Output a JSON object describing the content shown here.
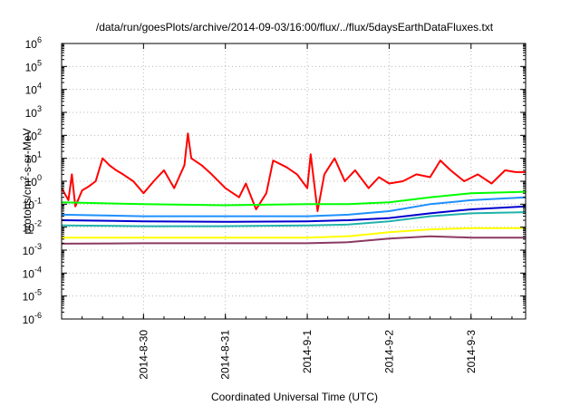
{
  "chart_data": {
    "type": "line",
    "title": "/data/run/goesPlots/archive/2014-09-03/16:00/flux/../flux/5daysEarthDataFluxes.txt",
    "xlabel": "Coordinated Universal Time (UTC)",
    "ylabel": "protons/cm²-s-sr-MeV",
    "yscale": "log",
    "ylim": [
      1e-06,
      1000000.0
    ],
    "xlim": [
      "2014-08-29 00:00",
      "2014-09-03 16:00"
    ],
    "x_tick_labels": [
      "2014-8-30",
      "2014-8-31",
      "2014-9-1",
      "2014-9-2",
      "2014-9-3"
    ],
    "y_tick_labels": [
      {
        "base": "10",
        "exp": "-6"
      },
      {
        "base": "10",
        "exp": "-5"
      },
      {
        "base": "10",
        "exp": "-4"
      },
      {
        "base": "10",
        "exp": "-3"
      },
      {
        "base": "10",
        "exp": "-2"
      },
      {
        "base": "10",
        "exp": "-1"
      },
      {
        "base": "10",
        "exp": "0"
      },
      {
        "base": "10",
        "exp": "1"
      },
      {
        "base": "10",
        "exp": "2"
      },
      {
        "base": "10",
        "exp": "3"
      },
      {
        "base": "10",
        "exp": "4"
      },
      {
        "base": "10",
        "exp": "5"
      },
      {
        "base": "10",
        "exp": "6"
      }
    ],
    "grid": true,
    "legend": "none",
    "series": [
      {
        "color": "#ff0000",
        "x": [
          "2014-08-29 00:00",
          "2014-08-29 02:00",
          "2014-08-29 03:00",
          "2014-08-29 04:00",
          "2014-08-29 06:00",
          "2014-08-29 08:00",
          "2014-08-29 10:00",
          "2014-08-29 12:00",
          "2014-08-29 14:00",
          "2014-08-29 16:00",
          "2014-08-29 18:00",
          "2014-08-29 21:00",
          "2014-08-30 00:00",
          "2014-08-30 03:00",
          "2014-08-30 06:00",
          "2014-08-30 09:00",
          "2014-08-30 12:00",
          "2014-08-30 13:00",
          "2014-08-30 14:00",
          "2014-08-30 17:00",
          "2014-08-30 20:00",
          "2014-08-31 00:00",
          "2014-08-31 04:00",
          "2014-08-31 06:00",
          "2014-08-31 09:00",
          "2014-08-31 12:00",
          "2014-08-31 14:00",
          "2014-08-31 18:00",
          "2014-08-31 21:00",
          "2014-09-01 00:00",
          "2014-09-01 01:00",
          "2014-09-01 03:00",
          "2014-09-01 05:00",
          "2014-09-01 08:00",
          "2014-09-01 11:00",
          "2014-09-01 14:00",
          "2014-09-01 18:00",
          "2014-09-01 21:00",
          "2014-09-02 00:00",
          "2014-09-02 04:00",
          "2014-09-02 08:00",
          "2014-09-02 12:00",
          "2014-09-02 15:00",
          "2014-09-02 18:00",
          "2014-09-02 22:00",
          "2014-09-03 02:00",
          "2014-09-03 06:00",
          "2014-09-03 10:00",
          "2014-09-03 13:00",
          "2014-09-03 16:00"
        ],
        "y": [
          0.5,
          0.15,
          2,
          0.08,
          0.4,
          0.6,
          1,
          10,
          5,
          3,
          2,
          1,
          0.3,
          1,
          3,
          0.5,
          5,
          120,
          10,
          5,
          2,
          0.5,
          0.2,
          0.8,
          0.06,
          0.3,
          8,
          4,
          2,
          0.5,
          15,
          0.05,
          2,
          10,
          1,
          3,
          0.5,
          1.5,
          0.8,
          1,
          2,
          1.5,
          8,
          3,
          1,
          2,
          0.8,
          3,
          2.5,
          2.5
        ]
      },
      {
        "color": "#00ff00",
        "x": [
          "2014-08-29 00:00",
          "2014-08-30 00:00",
          "2014-08-31 00:00",
          "2014-09-01 00:00",
          "2014-09-01 12:00",
          "2014-09-02 00:00",
          "2014-09-02 12:00",
          "2014-09-03 00:00",
          "2014-09-03 16:00"
        ],
        "y": [
          0.12,
          0.1,
          0.09,
          0.1,
          0.1,
          0.12,
          0.2,
          0.3,
          0.35
        ]
      },
      {
        "color": "#1e90ff",
        "x": [
          "2014-08-29 00:00",
          "2014-08-30 00:00",
          "2014-08-31 00:00",
          "2014-09-01 00:00",
          "2014-09-01 12:00",
          "2014-09-02 00:00",
          "2014-09-02 12:00",
          "2014-09-03 00:00",
          "2014-09-03 16:00"
        ],
        "y": [
          0.035,
          0.03,
          0.03,
          0.03,
          0.035,
          0.05,
          0.1,
          0.15,
          0.2
        ]
      },
      {
        "color": "#0000cd",
        "x": [
          "2014-08-29 00:00",
          "2014-08-30 00:00",
          "2014-08-31 00:00",
          "2014-09-01 00:00",
          "2014-09-01 12:00",
          "2014-09-02 00:00",
          "2014-09-02 12:00",
          "2014-09-03 00:00",
          "2014-09-03 16:00"
        ],
        "y": [
          0.02,
          0.018,
          0.017,
          0.018,
          0.02,
          0.025,
          0.04,
          0.06,
          0.08
        ]
      },
      {
        "color": "#20b2aa",
        "x": [
          "2014-08-29 00:00",
          "2014-08-30 00:00",
          "2014-08-31 00:00",
          "2014-09-01 00:00",
          "2014-09-01 12:00",
          "2014-09-02 00:00",
          "2014-09-02 12:00",
          "2014-09-03 00:00",
          "2014-09-03 16:00"
        ],
        "y": [
          0.012,
          0.011,
          0.011,
          0.012,
          0.013,
          0.018,
          0.03,
          0.04,
          0.045
        ]
      },
      {
        "color": "#ffff00",
        "x": [
          "2014-08-29 00:00",
          "2014-08-30 00:00",
          "2014-08-31 00:00",
          "2014-09-01 00:00",
          "2014-09-01 12:00",
          "2014-09-02 00:00",
          "2014-09-02 12:00",
          "2014-09-03 00:00",
          "2014-09-03 16:00"
        ],
        "y": [
          0.0035,
          0.0035,
          0.0035,
          0.0035,
          0.004,
          0.006,
          0.008,
          0.009,
          0.009
        ]
      },
      {
        "color": "#8b3a62",
        "x": [
          "2014-08-29 00:00",
          "2014-08-30 00:00",
          "2014-08-31 00:00",
          "2014-09-01 00:00",
          "2014-09-01 12:00",
          "2014-09-02 00:00",
          "2014-09-02 12:00",
          "2014-09-03 00:00",
          "2014-09-03 16:00"
        ],
        "y": [
          0.0019,
          0.002,
          0.002,
          0.002,
          0.0022,
          0.0032,
          0.004,
          0.0035,
          0.0035
        ]
      }
    ]
  }
}
